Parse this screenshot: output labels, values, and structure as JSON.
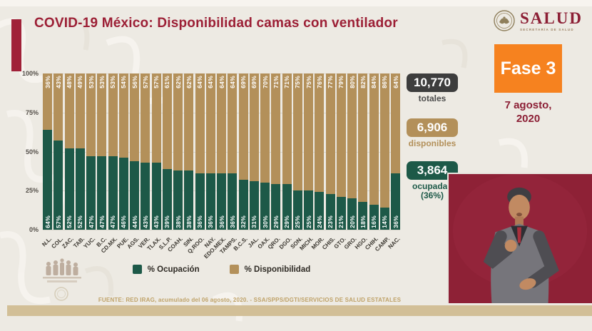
{
  "header": {
    "title": "COVID-19 México: Disponibilidad camas con ventilador",
    "logo": {
      "name": "SALUD",
      "subtitle": "SECRETARÍA DE SALUD"
    },
    "phase": "Fase 3",
    "date_line1": "7 agosto,",
    "date_line2": "2020"
  },
  "colors": {
    "accent_maroon": "#9c1f35",
    "occupied_green": "#1d5948",
    "available_tan": "#b3905a",
    "phase_orange": "#f6821f",
    "totals_black": "#3d3d3d",
    "totals_label_gray": "#4b4b4b",
    "video_crimson": "#8e2136"
  },
  "chart_data": {
    "type": "bar",
    "stacked": true,
    "title": "COVID-19 México: Disponibilidad camas con ventilador",
    "categories": [
      "N.L.",
      "COL.",
      "ZAC.",
      "TAB.",
      "YUC.",
      "B.C.",
      "CD.MX.",
      "PUE.",
      "AGS.",
      "VER.",
      "TLAX.",
      "S.L.P.",
      "COAH.",
      "SIN.",
      "Q.ROO.",
      "NAY.",
      "EDO.MEX.",
      "TAMPS.",
      "B.C.S.",
      "JAL.",
      "OAX.",
      "QRO.",
      "DGO.",
      "SON.",
      "MICH.",
      "MOR.",
      "CHIS.",
      "GTO.",
      "GRO.",
      "HGO.",
      "CHIH.",
      "CAMP.",
      "NAC."
    ],
    "series": [
      {
        "name": "% Ocupación",
        "color": "#1d5948",
        "values": [
          64,
          57,
          52,
          52,
          47,
          47,
          47,
          46,
          44,
          43,
          43,
          39,
          38,
          38,
          36,
          36,
          36,
          36,
          32,
          31,
          30,
          29,
          29,
          25,
          25,
          24,
          23,
          21,
          20,
          18,
          16,
          14,
          36
        ]
      },
      {
        "name": "% Disponibilidad",
        "color": "#b3905a",
        "values": [
          36,
          43,
          48,
          49,
          53,
          53,
          53,
          54,
          56,
          57,
          57,
          61,
          62,
          62,
          64,
          64,
          64,
          64,
          69,
          69,
          70,
          71,
          71,
          75,
          75,
          76,
          77,
          79,
          80,
          82,
          84,
          86,
          64
        ]
      }
    ],
    "ylabels": [
      "100%",
      "75%",
      "50%",
      "25%",
      "0%"
    ],
    "ylim": [
      0,
      100
    ],
    "grid": true,
    "legend_position": "bottom"
  },
  "stats": {
    "totales": {
      "value": "10,770",
      "label": "totales"
    },
    "disponibles": {
      "value": "6,906",
      "label": "disponibles"
    },
    "ocupadas": {
      "value": "3,864",
      "label": "ocupadas",
      "sub": "(36%)"
    }
  },
  "footer": {
    "source": "FUENTE: RED IRAG, acumulado del 06 agosto, 2020. -  SSA/SPPS/DGTI/SERVICIOS DE SALUD ESTATALES"
  }
}
